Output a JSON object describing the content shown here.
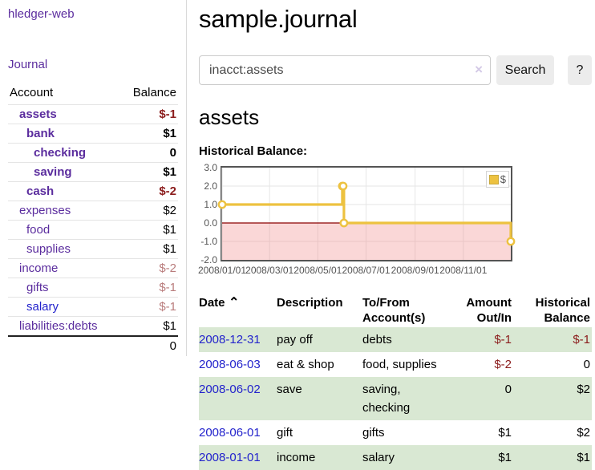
{
  "app": {
    "title": "hledger-web"
  },
  "sidebar": {
    "nav_journal": "Journal",
    "table": {
      "headers": {
        "account": "Account",
        "balance": "Balance"
      },
      "accounts": [
        {
          "label": "assets",
          "balance": "$-1",
          "depth": 1,
          "bold": true,
          "balance_style": "negative-strong",
          "link": "purple"
        },
        {
          "label": "bank",
          "balance": "$1",
          "depth": 2,
          "bold": true,
          "balance_style": "normal",
          "link": "purple"
        },
        {
          "label": "checking",
          "balance": "0",
          "depth": 3,
          "bold": true,
          "balance_style": "normal",
          "link": "purple"
        },
        {
          "label": "saving",
          "balance": "$1",
          "depth": 3,
          "bold": true,
          "balance_style": "normal",
          "link": "purple"
        },
        {
          "label": "cash",
          "balance": "$-2",
          "depth": 2,
          "bold": true,
          "balance_style": "negative-strong",
          "link": "purple"
        },
        {
          "label": "expenses",
          "balance": "$2",
          "depth": 1,
          "bold": false,
          "balance_style": "normal",
          "link": "purple"
        },
        {
          "label": "food",
          "balance": "$1",
          "depth": 2,
          "bold": false,
          "balance_style": "normal",
          "link": "purple"
        },
        {
          "label": "supplies",
          "balance": "$1",
          "depth": 2,
          "bold": false,
          "balance_style": "normal",
          "link": "purple"
        },
        {
          "label": "income",
          "balance": "$-2",
          "depth": 1,
          "bold": false,
          "balance_style": "negative-muted",
          "link": "purple"
        },
        {
          "label": "gifts",
          "balance": "$-1",
          "depth": 2,
          "bold": false,
          "balance_style": "negative-muted",
          "link": "purple"
        },
        {
          "label": "salary",
          "balance": "$-1",
          "depth": 2,
          "bold": false,
          "balance_style": "negative-muted",
          "link": "blue"
        },
        {
          "label": "liabilities:debts",
          "balance": "$1",
          "depth": 1,
          "bold": false,
          "balance_style": "normal",
          "link": "purple"
        }
      ],
      "total": "0"
    }
  },
  "main": {
    "title": "sample.journal",
    "search": {
      "value": "inacct:assets",
      "clear_icon": "×",
      "button_label": "Search",
      "help_label": "?"
    },
    "account_heading": "assets",
    "chart_title": "Historical Balance:"
  },
  "chart_data": {
    "type": "line",
    "style": "step-after",
    "title": "Historical Balance:",
    "series": [
      {
        "name": "$",
        "color": "#EDC240",
        "points": [
          [
            "2008-01-01",
            1
          ],
          [
            "2008-06-01",
            2
          ],
          [
            "2008-06-02",
            2
          ],
          [
            "2008-06-03",
            0
          ],
          [
            "2008-12-31",
            -1
          ]
        ]
      }
    ],
    "xlim": [
      "2008-01-01",
      "2008-12-31"
    ],
    "ylim": [
      -2,
      3
    ],
    "yticks": [
      3.0,
      2.0,
      1.0,
      0.0,
      -1.0,
      -2.0
    ],
    "xticks": [
      "2008/01/01",
      "2008/03/01",
      "2008/05/01",
      "2008/07/01",
      "2008/09/01",
      "2008/11/01"
    ],
    "grid": true,
    "legend_position": "top-right",
    "negative_region": {
      "fill": "rgba(238,130,130,0.32)",
      "zero_line_color": "#8b0000"
    },
    "grid_color": "#e6e6e6",
    "border_color": "#545454"
  },
  "register": {
    "columns": [
      {
        "lines": [
          "Date"
        ],
        "align": "left",
        "sort_icon": "⌃"
      },
      {
        "lines": [
          "Description"
        ],
        "align": "left"
      },
      {
        "lines": [
          "To/From",
          "Account(s)"
        ],
        "align": "left"
      },
      {
        "lines": [
          "Amount",
          "Out/In"
        ],
        "align": "right"
      },
      {
        "lines": [
          "Historical",
          "Balance"
        ],
        "align": "right"
      }
    ],
    "rows": [
      {
        "date": "2008-12-31",
        "description": "pay off",
        "accounts": "debts",
        "amount": "$-1",
        "amount_negative": true,
        "balance": "$-1",
        "balance_negative": true
      },
      {
        "date": "2008-06-03",
        "description": "eat & shop",
        "accounts": "food, supplies",
        "amount": "$-2",
        "amount_negative": true,
        "balance": "0",
        "balance_negative": false
      },
      {
        "date": "2008-06-02",
        "description": "save",
        "accounts": "saving, checking",
        "amount": "0",
        "amount_negative": false,
        "balance": "$2",
        "balance_negative": false
      },
      {
        "date": "2008-06-01",
        "description": "gift",
        "accounts": "gifts",
        "amount": "$1",
        "amount_negative": false,
        "balance": "$2",
        "balance_negative": false
      },
      {
        "date": "2008-01-01",
        "description": "income",
        "accounts": "salary",
        "amount": "$1",
        "amount_negative": false,
        "balance": "$1",
        "balance_negative": false
      }
    ]
  }
}
